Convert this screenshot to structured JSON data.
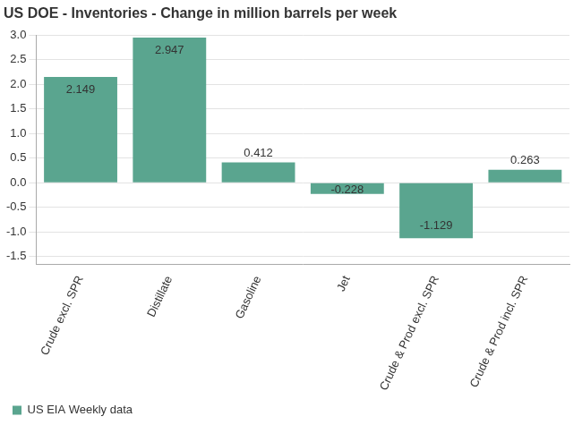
{
  "chart_data": {
    "type": "bar",
    "title": "US DOE - Inventories - Change in million barrels per week",
    "categories": [
      "Crude excl. SPR",
      "Distillate",
      "Gasoline",
      "Jet",
      "Crude & Prod excl. SPR",
      "Crude & Prod incl. SPR"
    ],
    "series": [
      {
        "name": "US EIA Weekly data",
        "color": "#5aa58f",
        "values": [
          2.149,
          2.947,
          0.412,
          -0.228,
          -1.129,
          0.263
        ]
      }
    ],
    "ylim": [
      -1.65,
      3.0
    ],
    "yticks": [
      {
        "value": 3,
        "label": "3.0"
      },
      2.5,
      {
        "value": 2,
        "label": "2.0"
      },
      1.5,
      {
        "value": 1,
        "label": "1.0"
      },
      0.5,
      {
        "value": 0,
        "label": "0.0"
      },
      -0.5,
      {
        "value": -1,
        "label": "-1.0"
      },
      -1.5
    ],
    "grid": true,
    "legend": "bottom-left",
    "data_labels": true
  }
}
